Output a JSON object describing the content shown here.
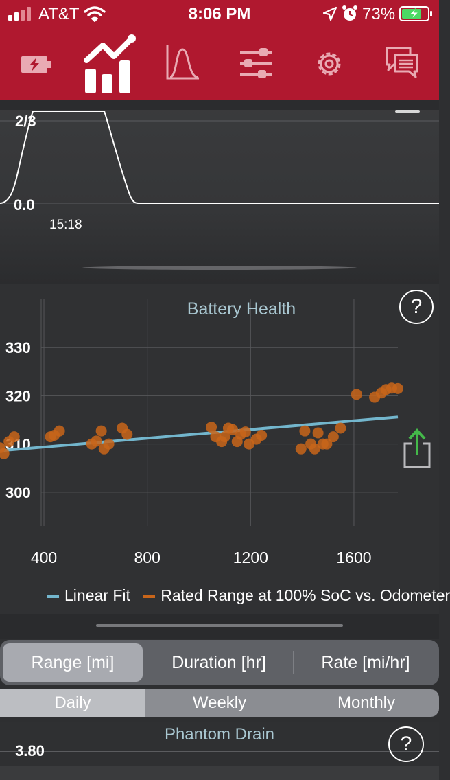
{
  "status_bar": {
    "carrier": "AT&T",
    "time": "8:06 PM",
    "battery_percent": "73%"
  },
  "toolbar": {
    "tabs": [
      {
        "icon": "battery-charge-icon",
        "selected": false
      },
      {
        "icon": "trend-chart-icon",
        "selected": true
      },
      {
        "icon": "distribution-icon",
        "selected": false
      },
      {
        "icon": "sliders-icon",
        "selected": false
      },
      {
        "icon": "gear-icon",
        "selected": false
      },
      {
        "icon": "chat-icon",
        "selected": false
      }
    ]
  },
  "top_chart": {
    "y_labels": [
      "2/3",
      "0.0"
    ],
    "x_label": "15:18"
  },
  "health": {
    "help_label": "?",
    "share_icon": "share-icon"
  },
  "chart_data": {
    "type": "scatter",
    "title": "Battery Health",
    "xlabel": "",
    "ylabel": "",
    "xlim": [
      230,
      1770
    ],
    "ylim": [
      293,
      340
    ],
    "x_ticks": [
      "400",
      "800",
      "1200",
      "1600"
    ],
    "y_ticks": [
      "300",
      "310",
      "320",
      "330"
    ],
    "grid": true,
    "legend_position": "bottom",
    "legend": [
      "Linear Fit",
      "Rated Range at 100% SoC vs. Odometer"
    ],
    "series": [
      {
        "name": "Rated Range at 100% SoC vs. Odometer",
        "color": "#c8651a",
        "points": [
          [
            230,
            309.2
          ],
          [
            245,
            308
          ],
          [
            265,
            310.5
          ],
          [
            285,
            311.5
          ],
          [
            425,
            311.5
          ],
          [
            440,
            311.8
          ],
          [
            460,
            312.7
          ],
          [
            585,
            310
          ],
          [
            603,
            310.6
          ],
          [
            622,
            312.7
          ],
          [
            633,
            309
          ],
          [
            651,
            310
          ],
          [
            703,
            313.3
          ],
          [
            722,
            312
          ],
          [
            1048,
            313.5
          ],
          [
            1065,
            311.5
          ],
          [
            1088,
            310.5
          ],
          [
            1100,
            311.5
          ],
          [
            1114,
            313.3
          ],
          [
            1130,
            313
          ],
          [
            1148,
            310.5
          ],
          [
            1162,
            312
          ],
          [
            1180,
            312.5
          ],
          [
            1194,
            310
          ],
          [
            1222,
            311
          ],
          [
            1242,
            311.8
          ],
          [
            1395,
            309
          ],
          [
            1410,
            312.7
          ],
          [
            1433,
            310
          ],
          [
            1448,
            309
          ],
          [
            1461,
            312.3
          ],
          [
            1480,
            310
          ],
          [
            1495,
            310
          ],
          [
            1520,
            311.5
          ],
          [
            1548,
            313.3
          ],
          [
            1610,
            320.3
          ],
          [
            1680,
            319.7
          ],
          [
            1706,
            320.6
          ],
          [
            1724,
            321.3
          ],
          [
            1746,
            321.6
          ],
          [
            1770,
            321.5
          ]
        ]
      },
      {
        "name": "Linear Fit",
        "color": "#73b6cd",
        "line": [
          [
            230,
            308.6
          ],
          [
            1770,
            315.6
          ]
        ]
      }
    ]
  },
  "segments": {
    "metrics": [
      "Range [mi]",
      "Duration [hr]",
      "Rate [mi/hr]"
    ],
    "periods": [
      "Daily",
      "Weekly",
      "Monthly"
    ]
  },
  "phantom_drain": {
    "title": "Phantom Drain",
    "value": "3.80",
    "help_label": "?"
  }
}
